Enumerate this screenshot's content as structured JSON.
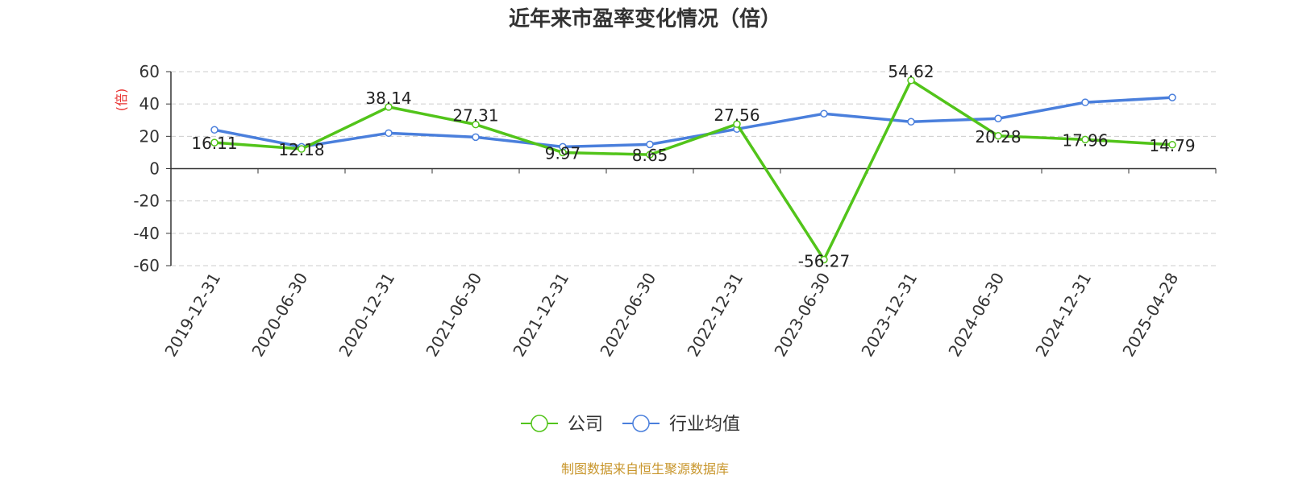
{
  "chart_data": {
    "type": "line",
    "title": "近年来市盈率变化情况（倍）",
    "ylabel": "(倍)",
    "ylim": [
      -60,
      60
    ],
    "yticks": [
      60,
      40,
      20,
      0,
      -20,
      -40,
      -60
    ],
    "grid": true,
    "legend_position": "bottom",
    "categories": [
      "2019-12-31",
      "2020-06-30",
      "2020-12-31",
      "2021-06-30",
      "2021-12-31",
      "2022-06-30",
      "2022-12-31",
      "2023-06-30",
      "2023-12-31",
      "2024-06-30",
      "2024-12-31",
      "2025-04-28"
    ],
    "series": [
      {
        "name": "公司",
        "color": "#52c41a",
        "values": [
          16.11,
          12.18,
          38.14,
          27.31,
          9.97,
          8.65,
          27.56,
          -56.27,
          54.62,
          20.28,
          17.96,
          14.79
        ],
        "labels": [
          "16.11",
          "12.18",
          "38.14",
          "27.31",
          "9.97",
          "8.65",
          "27.56",
          "-56.27",
          "54.62",
          "20.28",
          "17.96",
          "14.79"
        ]
      },
      {
        "name": "行业均值",
        "color": "#4a7fdc",
        "values": [
          24.0,
          13.5,
          22.0,
          19.5,
          13.5,
          15.0,
          24.5,
          34.0,
          29.0,
          31.0,
          41.0,
          44.0
        ]
      }
    ]
  },
  "source_text": "制图数据来自恒生聚源数据库"
}
